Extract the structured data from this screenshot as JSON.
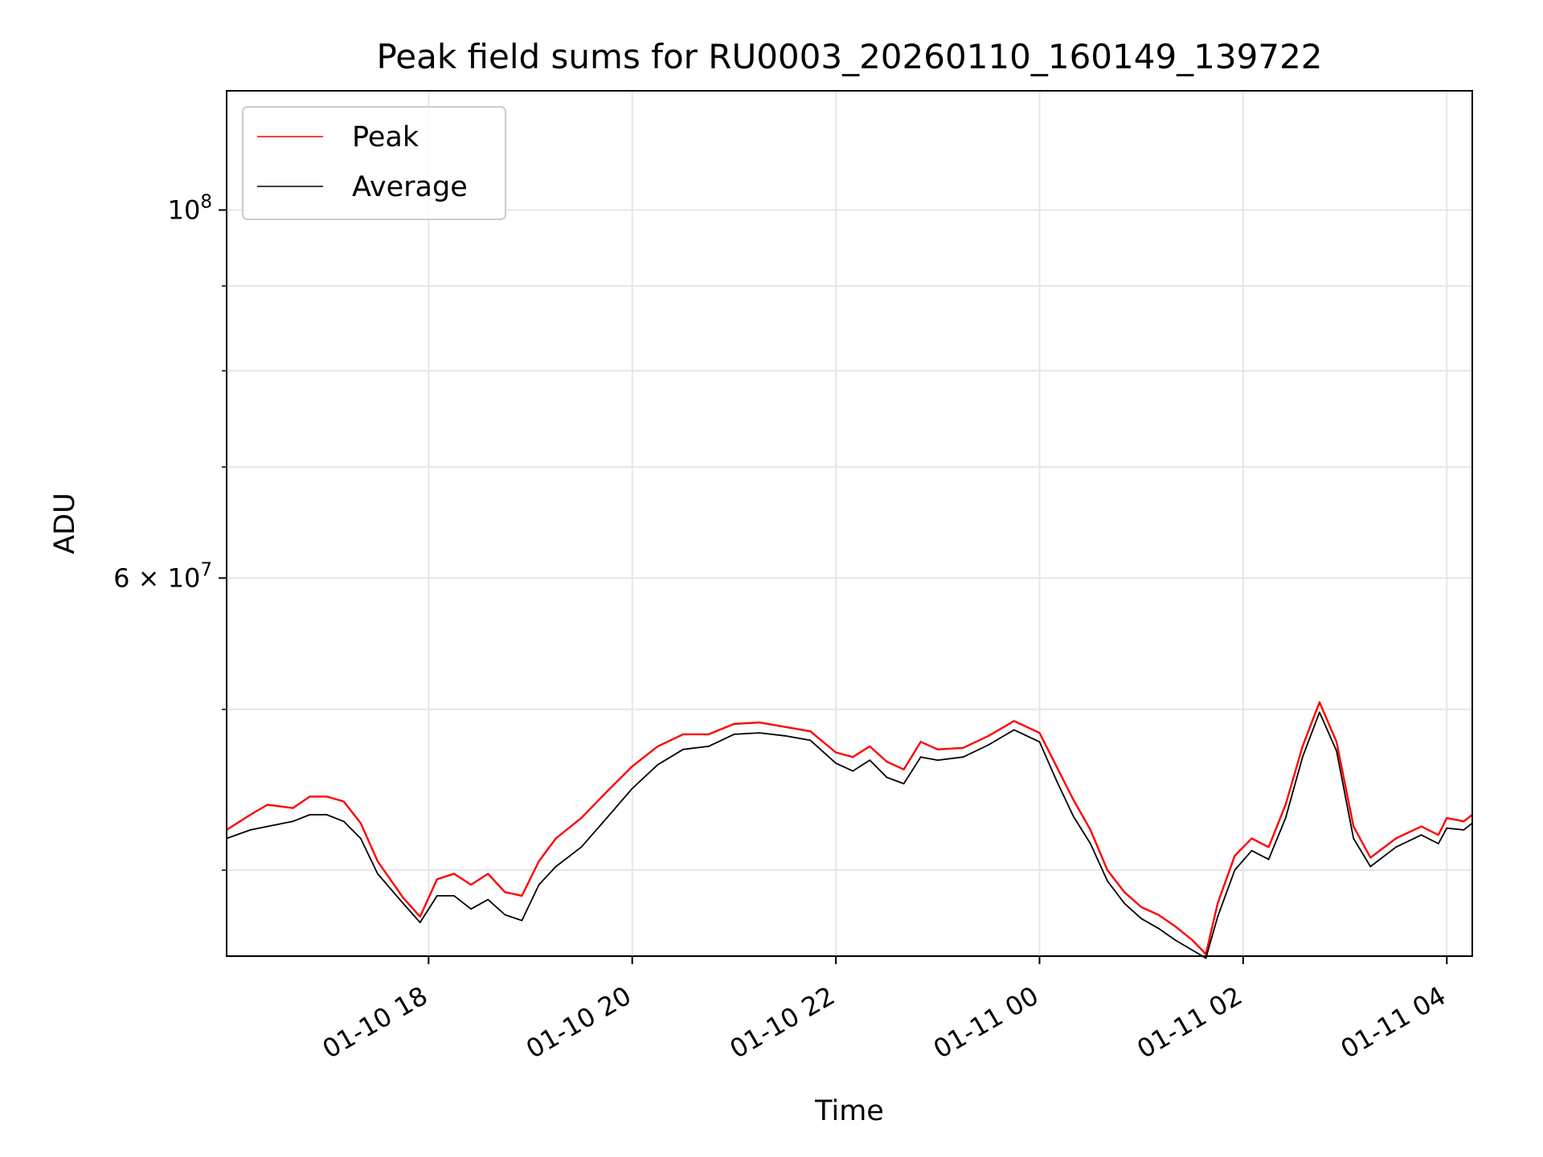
{
  "chart_data": {
    "type": "line",
    "title": "Peak field sums for RU0003_20260110_160149_139722",
    "xlabel": "Time",
    "ylabel": "ADU",
    "x_tick_labels": [
      "01-10 18",
      "01-10 20",
      "01-10 22",
      "01-11 00",
      "01-11 02",
      "01-11 04"
    ],
    "x_tick_values": [
      "2026-01-10 18:00",
      "2026-01-10 20:00",
      "2026-01-10 22:00",
      "2026-01-11 00:00",
      "2026-01-11 02:00",
      "2026-01-11 04:00"
    ],
    "xlim": [
      "2026-01-10 16:01",
      "2026-01-11 04:15"
    ],
    "yscale": "log",
    "ylim": [
      35500000,
      118000000
    ],
    "y_major_ticks": [
      {
        "value": 60000000,
        "mantissa": "6",
        "exponent": "7"
      },
      {
        "value": 100000000,
        "mantissa": "",
        "exponent": "8"
      }
    ],
    "y_minor_ticks": [
      40000000,
      50000000,
      70000000,
      80000000,
      90000000
    ],
    "grid": true,
    "legend_position": "upper-left",
    "series": [
      {
        "name": "Peak",
        "color": "#ff0000",
        "points": [
          [
            "2026-01-10 16:01",
            42300000
          ],
          [
            "2026-01-10 16:15",
            43200000
          ],
          [
            "2026-01-10 16:25",
            43800000
          ],
          [
            "2026-01-10 16:40",
            43600000
          ],
          [
            "2026-01-10 16:50",
            44300000
          ],
          [
            "2026-01-10 17:00",
            44300000
          ],
          [
            "2026-01-10 17:10",
            44000000
          ],
          [
            "2026-01-10 17:20",
            42700000
          ],
          [
            "2026-01-10 17:30",
            40500000
          ],
          [
            "2026-01-10 17:45",
            38500000
          ],
          [
            "2026-01-10 17:55",
            37500000
          ],
          [
            "2026-01-10 18:05",
            39500000
          ],
          [
            "2026-01-10 18:15",
            39800000
          ],
          [
            "2026-01-10 18:25",
            39200000
          ],
          [
            "2026-01-10 18:35",
            39800000
          ],
          [
            "2026-01-10 18:45",
            38800000
          ],
          [
            "2026-01-10 18:55",
            38600000
          ],
          [
            "2026-01-10 19:05",
            40500000
          ],
          [
            "2026-01-10 19:15",
            41800000
          ],
          [
            "2026-01-10 19:30",
            43000000
          ],
          [
            "2026-01-10 19:45",
            44600000
          ],
          [
            "2026-01-10 20:00",
            46200000
          ],
          [
            "2026-01-10 20:15",
            47500000
          ],
          [
            "2026-01-10 20:30",
            48300000
          ],
          [
            "2026-01-10 20:45",
            48300000
          ],
          [
            "2026-01-10 21:00",
            49000000
          ],
          [
            "2026-01-10 21:15",
            49100000
          ],
          [
            "2026-01-10 21:30",
            48800000
          ],
          [
            "2026-01-10 21:45",
            48500000
          ],
          [
            "2026-01-10 22:00",
            47100000
          ],
          [
            "2026-01-10 22:10",
            46800000
          ],
          [
            "2026-01-10 22:20",
            47500000
          ],
          [
            "2026-01-10 22:30",
            46500000
          ],
          [
            "2026-01-10 22:40",
            46000000
          ],
          [
            "2026-01-10 22:50",
            47800000
          ],
          [
            "2026-01-10 23:00",
            47300000
          ],
          [
            "2026-01-10 23:15",
            47400000
          ],
          [
            "2026-01-10 23:30",
            48200000
          ],
          [
            "2026-01-10 23:45",
            49200000
          ],
          [
            "2026-01-11 00:00",
            48400000
          ],
          [
            "2026-01-11 00:10",
            46200000
          ],
          [
            "2026-01-11 00:20",
            44100000
          ],
          [
            "2026-01-11 00:30",
            42300000
          ],
          [
            "2026-01-11 00:40",
            40000000
          ],
          [
            "2026-01-11 00:50",
            38800000
          ],
          [
            "2026-01-11 01:00",
            38000000
          ],
          [
            "2026-01-11 01:10",
            37600000
          ],
          [
            "2026-01-11 01:20",
            37000000
          ],
          [
            "2026-01-11 01:30",
            36300000
          ],
          [
            "2026-01-11 01:38",
            35600000
          ],
          [
            "2026-01-11 01:45",
            38200000
          ],
          [
            "2026-01-11 01:55",
            40800000
          ],
          [
            "2026-01-11 02:05",
            41800000
          ],
          [
            "2026-01-11 02:15",
            41300000
          ],
          [
            "2026-01-11 02:25",
            43800000
          ],
          [
            "2026-01-11 02:35",
            47500000
          ],
          [
            "2026-01-11 02:45",
            50500000
          ],
          [
            "2026-01-11 02:55",
            47800000
          ],
          [
            "2026-01-11 03:05",
            42500000
          ],
          [
            "2026-01-11 03:15",
            40700000
          ],
          [
            "2026-01-11 03:30",
            41800000
          ],
          [
            "2026-01-11 03:45",
            42500000
          ],
          [
            "2026-01-11 03:55",
            42000000
          ],
          [
            "2026-01-11 04:00",
            43000000
          ],
          [
            "2026-01-11 04:10",
            42800000
          ],
          [
            "2026-01-11 04:15",
            43200000
          ]
        ]
      },
      {
        "name": "Average",
        "color": "#000000",
        "points": [
          [
            "2026-01-10 16:01",
            41800000
          ],
          [
            "2026-01-10 16:15",
            42300000
          ],
          [
            "2026-01-10 16:25",
            42500000
          ],
          [
            "2026-01-10 16:40",
            42800000
          ],
          [
            "2026-01-10 16:50",
            43200000
          ],
          [
            "2026-01-10 17:00",
            43200000
          ],
          [
            "2026-01-10 17:10",
            42800000
          ],
          [
            "2026-01-10 17:20",
            41800000
          ],
          [
            "2026-01-10 17:30",
            39800000
          ],
          [
            "2026-01-10 17:45",
            38200000
          ],
          [
            "2026-01-10 17:55",
            37200000
          ],
          [
            "2026-01-10 18:05",
            38600000
          ],
          [
            "2026-01-10 18:15",
            38600000
          ],
          [
            "2026-01-10 18:25",
            37900000
          ],
          [
            "2026-01-10 18:35",
            38400000
          ],
          [
            "2026-01-10 18:45",
            37600000
          ],
          [
            "2026-01-10 18:55",
            37300000
          ],
          [
            "2026-01-10 19:05",
            39200000
          ],
          [
            "2026-01-10 19:15",
            40200000
          ],
          [
            "2026-01-10 19:30",
            41300000
          ],
          [
            "2026-01-10 19:45",
            43000000
          ],
          [
            "2026-01-10 20:00",
            44800000
          ],
          [
            "2026-01-10 20:15",
            46300000
          ],
          [
            "2026-01-10 20:30",
            47300000
          ],
          [
            "2026-01-10 20:45",
            47500000
          ],
          [
            "2026-01-10 21:00",
            48300000
          ],
          [
            "2026-01-10 21:15",
            48400000
          ],
          [
            "2026-01-10 21:30",
            48200000
          ],
          [
            "2026-01-10 21:45",
            47900000
          ],
          [
            "2026-01-10 22:00",
            46400000
          ],
          [
            "2026-01-10 22:10",
            45900000
          ],
          [
            "2026-01-10 22:20",
            46600000
          ],
          [
            "2026-01-10 22:30",
            45500000
          ],
          [
            "2026-01-10 22:40",
            45100000
          ],
          [
            "2026-01-10 22:50",
            46800000
          ],
          [
            "2026-01-10 23:00",
            46600000
          ],
          [
            "2026-01-10 23:15",
            46800000
          ],
          [
            "2026-01-10 23:30",
            47600000
          ],
          [
            "2026-01-10 23:45",
            48600000
          ],
          [
            "2026-01-11 00:00",
            47800000
          ],
          [
            "2026-01-11 00:10",
            45300000
          ],
          [
            "2026-01-11 00:20",
            43100000
          ],
          [
            "2026-01-11 00:30",
            41500000
          ],
          [
            "2026-01-11 00:40",
            39400000
          ],
          [
            "2026-01-11 00:50",
            38200000
          ],
          [
            "2026-01-11 01:00",
            37400000
          ],
          [
            "2026-01-11 01:10",
            36900000
          ],
          [
            "2026-01-11 01:20",
            36300000
          ],
          [
            "2026-01-11 01:30",
            35800000
          ],
          [
            "2026-01-11 01:38",
            35400000
          ],
          [
            "2026-01-11 01:45",
            37500000
          ],
          [
            "2026-01-11 01:55",
            40000000
          ],
          [
            "2026-01-11 02:05",
            41100000
          ],
          [
            "2026-01-11 02:15",
            40600000
          ],
          [
            "2026-01-11 02:25",
            43000000
          ],
          [
            "2026-01-11 02:35",
            46800000
          ],
          [
            "2026-01-11 02:45",
            49800000
          ],
          [
            "2026-01-11 02:55",
            47200000
          ],
          [
            "2026-01-11 03:05",
            41800000
          ],
          [
            "2026-01-11 03:15",
            40200000
          ],
          [
            "2026-01-11 03:30",
            41300000
          ],
          [
            "2026-01-11 03:45",
            42000000
          ],
          [
            "2026-01-11 03:55",
            41500000
          ],
          [
            "2026-01-11 04:00",
            42400000
          ],
          [
            "2026-01-11 04:10",
            42300000
          ],
          [
            "2026-01-11 04:15",
            42700000
          ]
        ]
      }
    ]
  }
}
